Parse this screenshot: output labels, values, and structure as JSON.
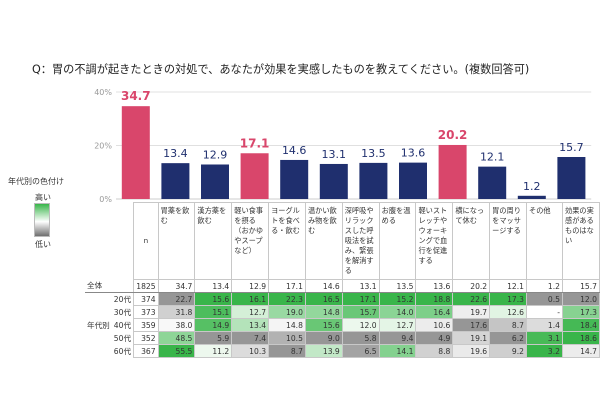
{
  "question": "Q：胃の不調が起きたときの対処で、あなたが効果を実感したものを教えてください。(複数回答可)",
  "legend": {
    "title": "年代別の色付け",
    "high": "高い",
    "low": "低い"
  },
  "colors": {
    "highlight": "#d9466b",
    "bar": "#1f2f6e",
    "label_highlight": "#d9466b",
    "label_normal": "#1f2f6e"
  },
  "chart_data": {
    "type": "bar",
    "categories": [
      "胃薬を飲む",
      "漢方薬を飲む",
      "軽い食事を摂る（おかゆやスープなど）",
      "ヨーグルトを食べる・飲む",
      "温かい飲み物を飲む",
      "深呼吸やリラックスした呼吸法を試み、緊張を解消する",
      "お腹を温める",
      "軽いストレッチやウォーキングで血行を促進する",
      "横になって休む",
      "胃の周りをマッサージする",
      "その他",
      "効果の実感があるものはない"
    ],
    "values": [
      34.7,
      13.4,
      12.9,
      17.1,
      14.6,
      13.1,
      13.5,
      13.6,
      20.2,
      12.1,
      1.2,
      15.7
    ],
    "highlight": [
      true,
      false,
      false,
      true,
      false,
      false,
      false,
      false,
      true,
      false,
      false,
      false
    ],
    "ylim": [
      0,
      40
    ],
    "yticks": [
      "0%",
      "20%",
      "40%"
    ],
    "ytick_values": [
      0,
      20,
      40
    ]
  },
  "table": {
    "n_header": "n",
    "group_label": "年代別",
    "rows": [
      {
        "label": "全体",
        "n": "1825",
        "values": [
          "34.7",
          "13.4",
          "12.9",
          "17.1",
          "14.6",
          "13.1",
          "13.5",
          "13.6",
          "20.2",
          "12.1",
          "1.2",
          "15.7"
        ]
      },
      {
        "label": "20代",
        "n": "374",
        "values": [
          "22.7",
          "15.6",
          "16.1",
          "22.3",
          "16.5",
          "17.1",
          "15.2",
          "18.8",
          "22.6",
          "17.3",
          "0.5",
          "12.0"
        ]
      },
      {
        "label": "30代",
        "n": "373",
        "values": [
          "31.8",
          "15.1",
          "12.7",
          "19.0",
          "14.8",
          "15.7",
          "14.0",
          "16.4",
          "19.7",
          "12.6",
          "-",
          "17.3"
        ]
      },
      {
        "label": "40代",
        "n": "359",
        "values": [
          "38.0",
          "14.9",
          "13.4",
          "14.8",
          "15.6",
          "12.0",
          "12.7",
          "10.6",
          "17.6",
          "8.7",
          "1.4",
          "18.4"
        ]
      },
      {
        "label": "50代",
        "n": "352",
        "values": [
          "48.5",
          "5.9",
          "7.4",
          "10.5",
          "9.0",
          "5.8",
          "9.4",
          "4.9",
          "19.1",
          "6.2",
          "3.1",
          "18.6"
        ]
      },
      {
        "label": "60代",
        "n": "367",
        "values": [
          "55.5",
          "11.2",
          "10.3",
          "8.7",
          "13.9",
          "6.5",
          "14.1",
          "8.8",
          "19.6",
          "9.2",
          "3.2",
          "14.7"
        ]
      }
    ]
  }
}
